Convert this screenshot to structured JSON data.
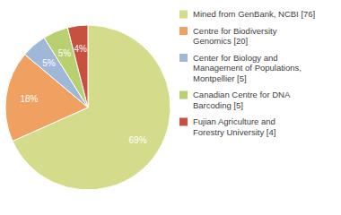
{
  "chart_data": {
    "type": "pie",
    "categories": [
      "Mined from GenBank, NCBI [76]",
      "Centre for Biodiversity\nGenomics [20]",
      "Center for Biology and\nManagement of Populations,\nMontpellier [5]",
      "Canadian Centre for DNA\nBarcoding [5]",
      "Fujian Agriculture and\nForestry University [4]"
    ],
    "values": [
      69,
      18,
      5,
      5,
      4
    ],
    "value_labels": [
      "69%",
      "18%",
      "5%",
      "5%",
      "4%"
    ],
    "colors": [
      "#d4dc8c",
      "#f0a060",
      "#a0b8d8",
      "#b8d070",
      "#c85040"
    ],
    "data_labels": true,
    "legend": "right"
  }
}
